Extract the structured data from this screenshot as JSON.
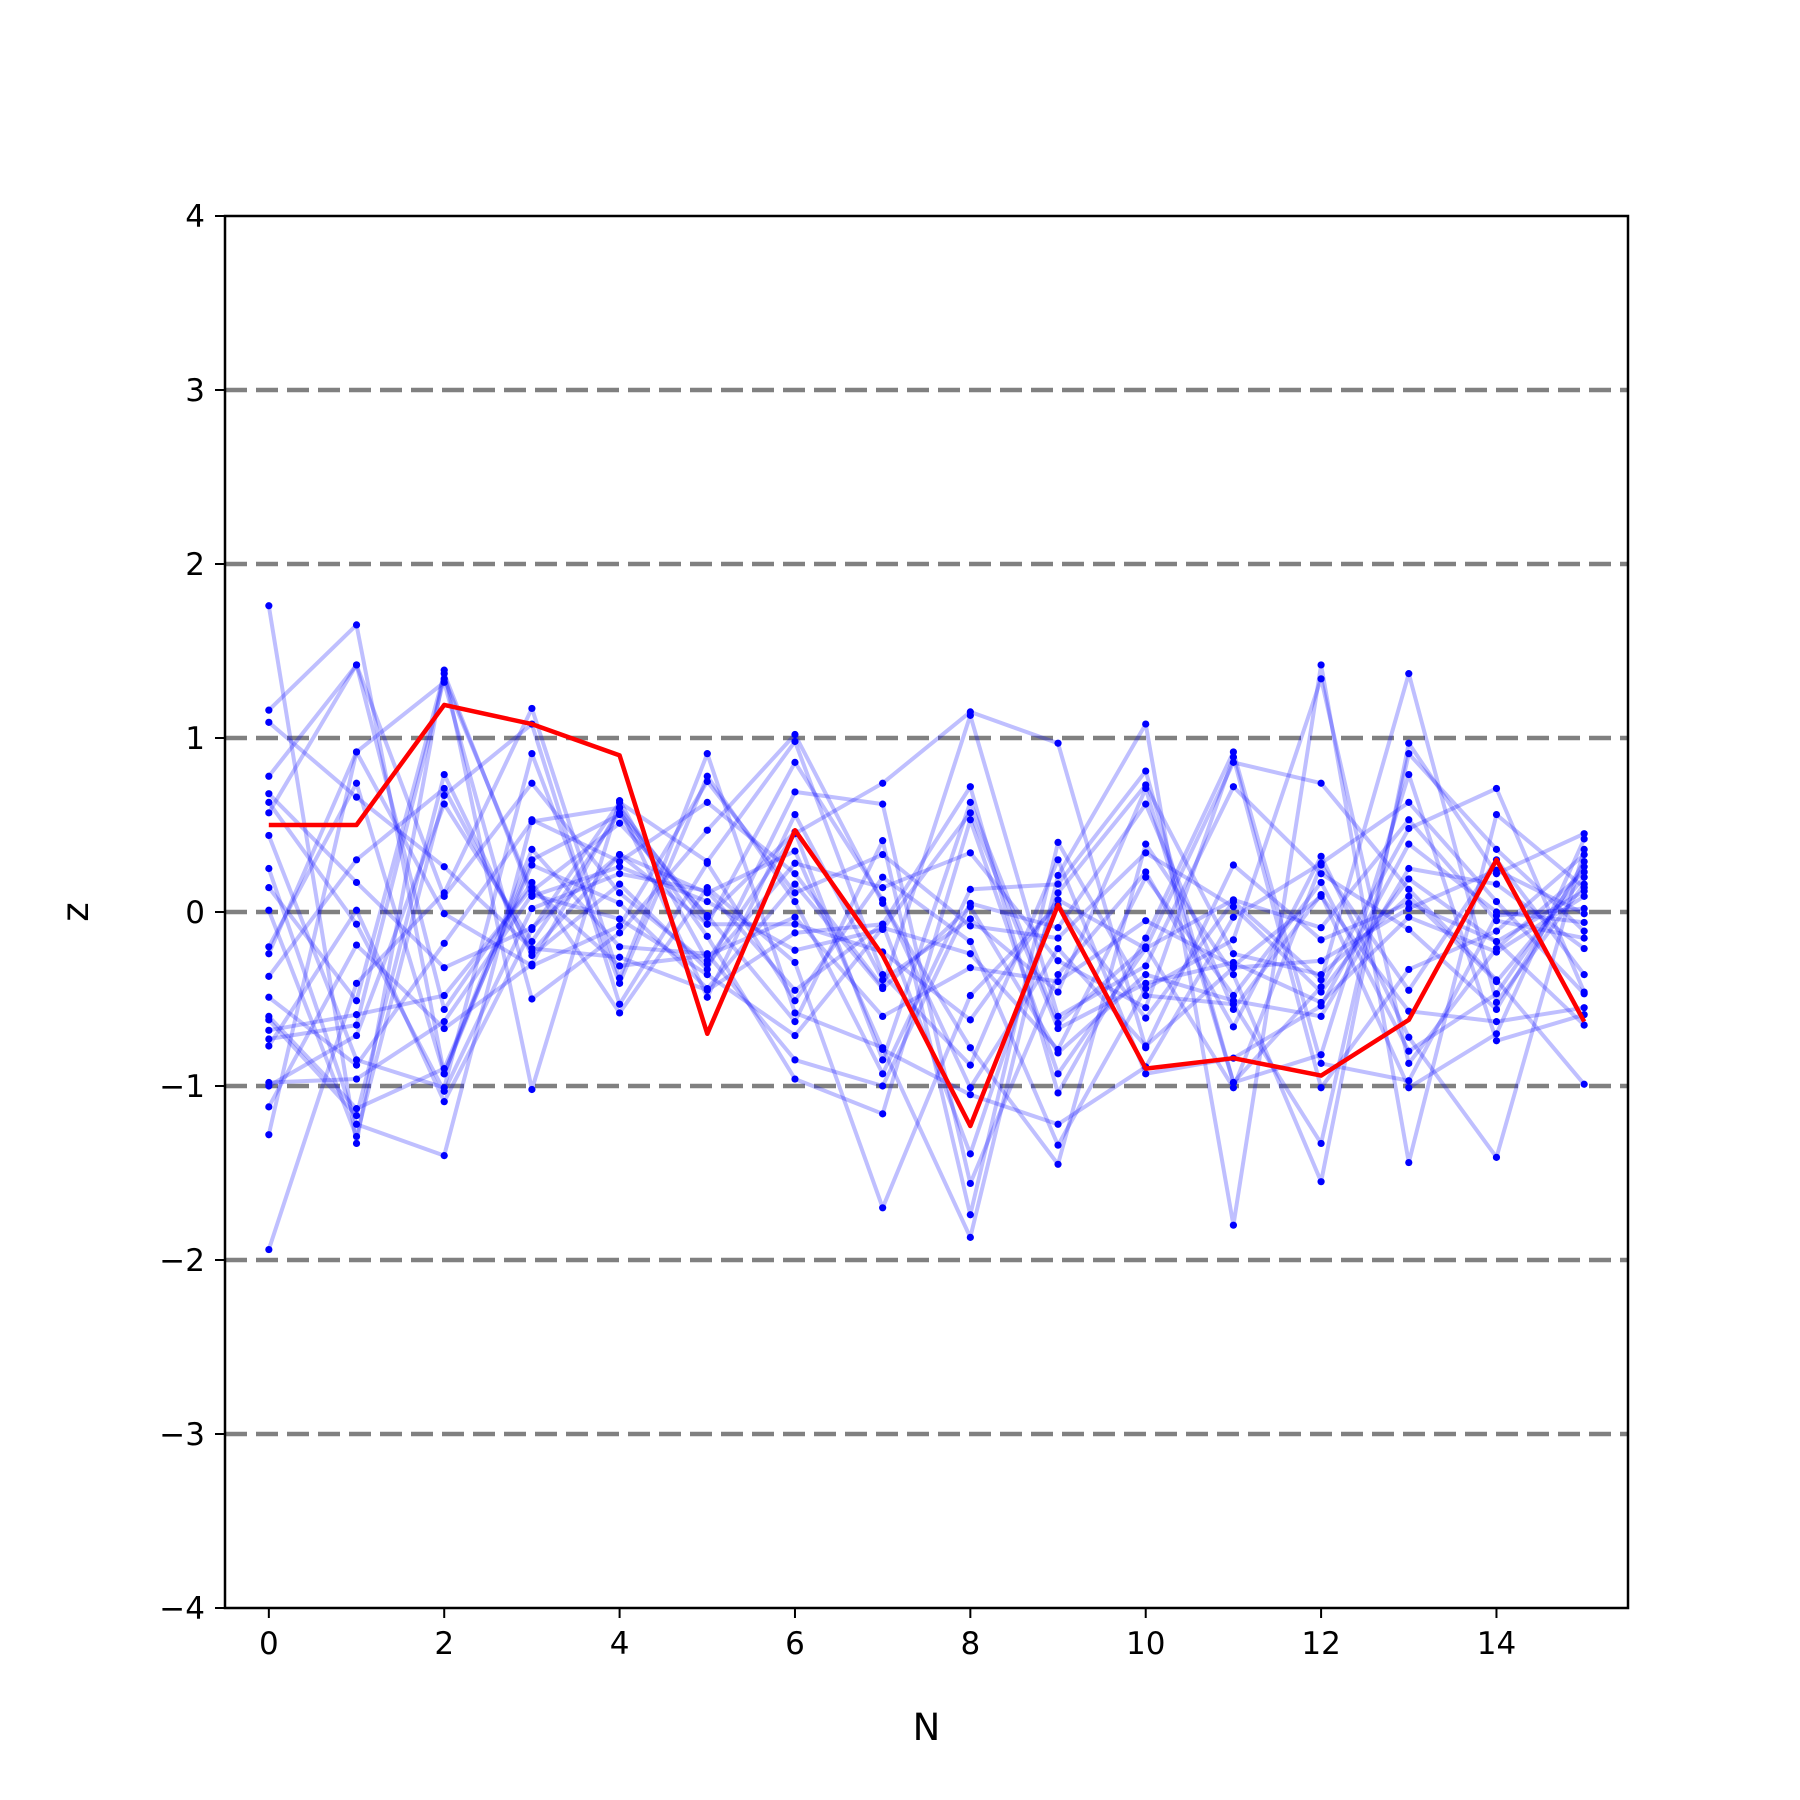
{
  "chart_data": {
    "type": "line",
    "title": "",
    "xlabel": "N",
    "ylabel": "z",
    "xlim": [
      -0.5,
      15.5
    ],
    "ylim": [
      -4,
      4
    ],
    "xticks": [
      0,
      2,
      4,
      6,
      8,
      10,
      12,
      14
    ],
    "yticks": [
      -4,
      -3,
      -2,
      -1,
      0,
      1,
      2,
      3,
      4
    ],
    "reference_lines": [
      -3,
      -2,
      -1,
      0,
      1,
      2,
      3
    ],
    "x": [
      0,
      1,
      2,
      3,
      4,
      5,
      6,
      7,
      8,
      9,
      10,
      11,
      12,
      13,
      14,
      15
    ],
    "highlight_series": {
      "color": "#ff0000",
      "values": [
        0.5,
        0.5,
        1.19,
        1.08,
        0.9,
        -0.7,
        0.47,
        -0.25,
        -1.23,
        0.04,
        -0.9,
        -0.84,
        -0.94,
        -0.62,
        0.3,
        -0.63
      ]
    },
    "background_series_color": "#0000ff",
    "background_series": [
      [
        1.76,
        -1.33,
        1.39,
        -1.02,
        0.64,
        -0.28,
        0.45,
        0.74,
        1.15,
        0.97,
        -0.78,
        0.27,
        -0.16,
        0.05,
        -0.17,
        -0.65
      ],
      [
        -1.94,
        -0.41,
        0.11,
        1.17,
        -0.38,
        0.91,
        -0.58,
        -0.78,
        -1.87,
        0.21,
        1.08,
        -1.8,
        1.42,
        -1.44,
        0.56,
        0.14
      ],
      [
        1.16,
        1.65,
        -0.93,
        0.3,
        0.56,
        -0.14,
        -0.96,
        -1.16,
        0.53,
        -0.93,
        -0.21,
        0.86,
        0.74,
        0.13,
        -0.39,
        -0.99
      ],
      [
        -1.28,
        0.92,
        1.32,
        -0.5,
        -0.12,
        0.47,
        1.02,
        0.05,
        -0.78,
        -1.45,
        0.39,
        -0.36,
        -1.55,
        0.97,
        0.22,
        0.45
      ],
      [
        0.78,
        1.42,
        -0.56,
        0.17,
        -0.58,
        0.14,
        -0.29,
        -1.7,
        -0.48,
        0.04,
        -0.61,
        0.06,
        -0.39,
        1.37,
        -0.52,
        0.16
      ],
      [
        -0.62,
        -1.17,
        0.79,
        -0.25,
        0.16,
        -0.33,
        0.69,
        0.62,
        -1.56,
        -0.36,
        0.23,
        -0.66,
        0.32,
        -0.72,
        -1.41,
        0.36
      ],
      [
        0.44,
        -0.85,
        -1.01,
        0.91,
        -0.41,
        0.78,
        0.06,
        -0.93,
        0.13,
        0.16,
        0.81,
        -0.98,
        -0.43,
        0.48,
        0.71,
        -0.46
      ],
      [
        1.09,
        0.66,
        0.26,
        -0.21,
        -0.26,
        -0.45,
        -0.12,
        -0.07,
        0.72,
        -1.04,
        -0.15,
        0.92,
        -0.87,
        -0.97,
        -0.02,
        0.02
      ],
      [
        -0.73,
        -0.65,
        1.34,
        0.12,
        0.51,
        -0.02,
        -0.63,
        0.41,
        -1.74,
        0.4,
        -0.48,
        -0.53,
        -1.33,
        0.91,
        0.36,
        -0.11
      ],
      [
        0.25,
        -1.22,
        -1.4,
        0.53,
        0.29,
        0.63,
        0.22,
        -0.43,
        1.13,
        -0.6,
        -0.31,
        0.72,
        0.22,
        -0.1,
        -0.56,
        0.29
      ],
      [
        -1.12,
        -0.19,
        -0.67,
        -0.3,
        0.6,
        -0.49,
        0.56,
        -0.39,
        -0.04,
        -0.46,
        0.71,
        -0.98,
        -0.82,
        0.79,
        -0.74,
        -0.59
      ],
      [
        0.01,
        -1.29,
        0.67,
        1.08,
        -0.53,
        0.28,
        -0.51,
        0.2,
        -0.17,
        -1.34,
        -0.44,
        -0.16,
        1.34,
        -0.87,
        -0.21,
        0.23
      ],
      [
        0.68,
        0.17,
        -0.32,
        -0.09,
        0.33,
        -0.07,
        0.86,
        0.07,
        -1.01,
        -0.21,
        -0.77,
        -0.32,
        -0.28,
        0.02,
        0.24,
        -0.01
      ],
      [
        -0.2,
        0.74,
        -0.93,
        0.36,
        -0.2,
        -0.24,
        -0.85,
        -1.0,
        0.05,
        -0.09,
        0.62,
        -0.56,
        0.1,
        -1.01,
        -0.7,
        0.42
      ],
      [
        -0.49,
        -0.88,
        -0.18,
        0.52,
        0.6,
        -0.07,
        -0.07,
        -0.23,
        -0.62,
        0.07,
        -0.21,
        0.07,
        -0.09,
        0.53,
        -0.05,
        -0.15
      ],
      [
        -0.37,
        0.3,
        0.71,
        -0.23,
        0.33,
        0.11,
        0.35,
        -0.79,
        -1.05,
        -1.22,
        -0.89,
        -0.03,
        0.28,
        0.63,
        0.06,
        -0.47
      ],
      [
        -0.98,
        -0.96,
        -0.63,
        0.1,
        -0.04,
        -0.36,
        -0.71,
        -0.09,
        -0.24,
        -0.79,
        0.2,
        -0.48,
        0.17,
        -0.8,
        -0.47,
        0.26
      ],
      [
        0.14,
        -0.51,
        1.37,
        0.09,
        0.26,
        0.06,
        -0.22,
        -0.1,
        0.57,
        -0.67,
        -0.41,
        -0.29,
        -0.52,
        -0.03,
        -0.23,
        0.09
      ],
      [
        -0.77,
        0.01,
        -1.09,
        -0.1,
        0.63,
        0.29,
        0.98,
        -0.36,
        -0.88,
        0.3,
        -0.93,
        -0.84,
        -0.54,
        0.39,
        0.0,
        -0.06
      ],
      [
        0.57,
        1.42,
        0.09,
        0.74,
        0.11,
        -0.3,
        0.28,
        0.14,
        0.34,
        -0.28,
        -0.55,
        0.89,
        -1.01,
        -0.33,
        -0.11,
        0.33
      ],
      [
        -0.68,
        -0.59,
        -0.48,
        0.14,
        -0.31,
        -0.25,
        -0.03,
        -0.6,
        -0.32,
        -0.4,
        -0.05,
        -0.31,
        0.09,
        -0.57,
        -0.63,
        -0.55
      ],
      [
        -0.24,
        0.92,
        -0.01,
        -0.31,
        -0.08,
        0.75,
        0.11,
        0.33,
        -0.08,
        -0.15,
        0.34,
        0.03,
        -0.46,
        0.19,
        -0.17,
        0.12
      ],
      [
        -1.0,
        -0.71,
        0.62,
        -0.17,
        0.57,
        -0.03,
        0.46,
        -0.85,
        0.63,
        -0.64,
        -0.2,
        -1.01,
        0.27,
        -0.45,
        0.3,
        -0.36
      ],
      [
        0.63,
        -0.07,
        -1.03,
        0.02,
        0.22,
        0.12,
        -0.45,
        -0.07,
        -1.39,
        0.11,
        0.73,
        -0.24,
        -0.36,
        0.09,
        -0.4,
        0.2
      ],
      [
        -0.6,
        -1.13,
        -0.9,
        0.27,
        0.05,
        -0.44,
        0.16,
        -0.44,
        0.03,
        -0.81,
        -0.36,
        -0.51,
        -0.6,
        0.25,
        0.16,
        -0.21
      ]
    ]
  }
}
